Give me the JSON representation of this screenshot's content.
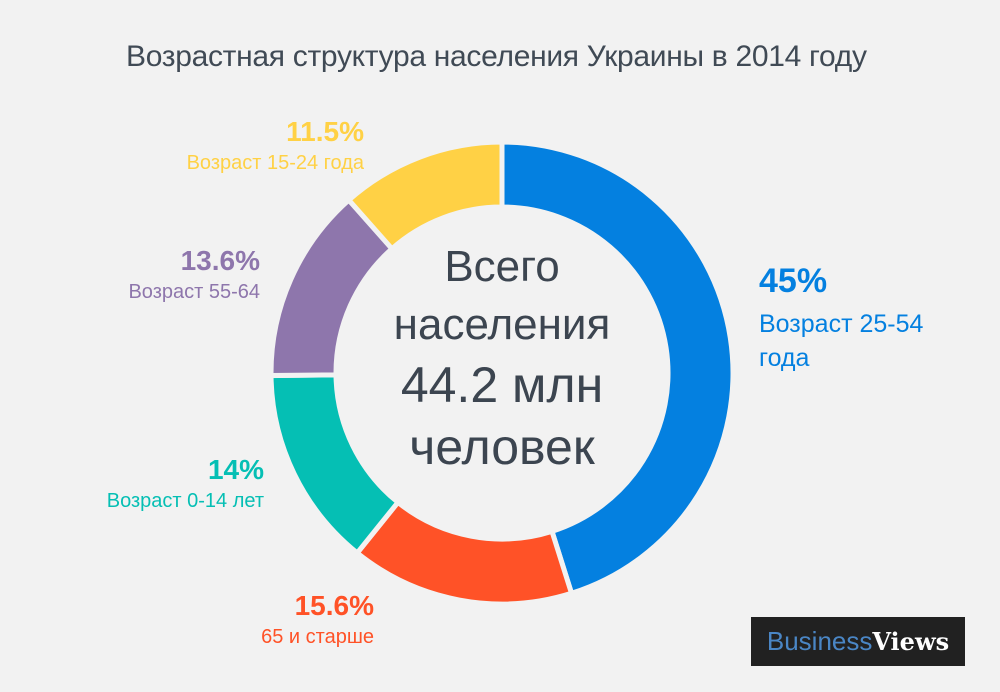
{
  "title": "Возрастная структура населения Украины в 2014 году",
  "center": {
    "line1": "Всего",
    "line2": "населения",
    "line3": "44.2 млн",
    "line4": "человек"
  },
  "segments": [
    {
      "pct": "45%",
      "label_line1": "Возраст 25-54",
      "label_line2": "года",
      "color": "#0480e0"
    },
    {
      "pct": "15.6%",
      "label_line1": "65 и старше",
      "color": "#ff5227"
    },
    {
      "pct": "14%",
      "label_line1": "Возраст 0-14 лет",
      "color": "#05bfb4"
    },
    {
      "pct": "13.6%",
      "label_line1": "Возраст 55-64",
      "color": "#8e76ac"
    },
    {
      "pct": "11.5%",
      "label_line1": "Возраст 15-24 года",
      "color": "#ffd145"
    }
  ],
  "logo": {
    "part1": "Business",
    "part2": "Views"
  },
  "chart_data": {
    "type": "pie",
    "variant": "donut",
    "title": "Возрастная структура населения Украины в 2014 году",
    "center_label": "Всего населения 44.2 млн человек",
    "categories": [
      "Возраст 25-54 года",
      "65 и старше",
      "Возраст 0-14 лет",
      "Возраст 55-64",
      "Возраст 15-24 года"
    ],
    "values": [
      45,
      15.6,
      14,
      13.6,
      11.5
    ],
    "unit": "%",
    "colors": [
      "#0480e0",
      "#ff5227",
      "#05bfb4",
      "#8e76ac",
      "#ffd145"
    ],
    "start_angle": "12 o'clock, clockwise"
  }
}
